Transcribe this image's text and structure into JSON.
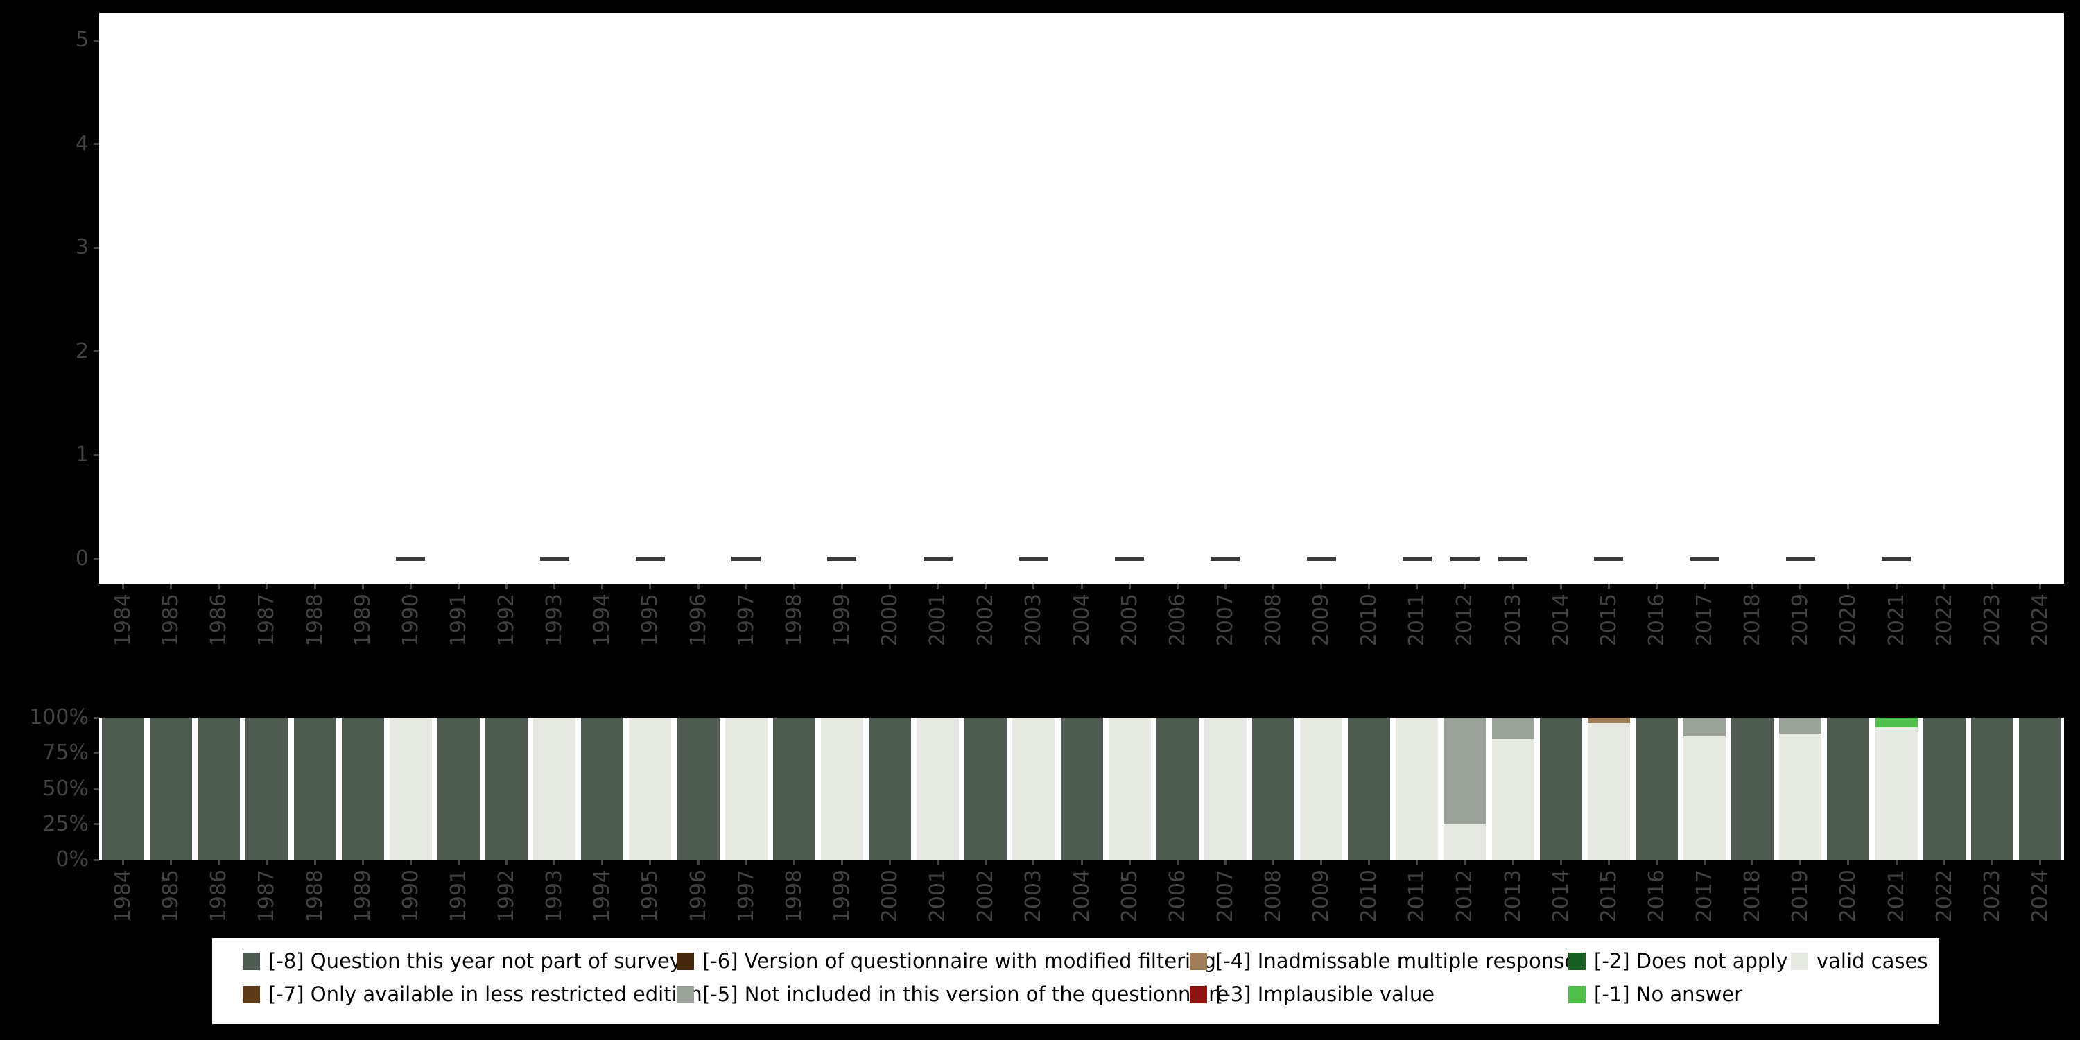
{
  "colors": {
    "background": "#000000",
    "plot_background": "#ffffff",
    "axis_text": "#424242",
    "point_dash": "#3a3a3a",
    "legend_background": "#ffffff",
    "legend_text": "#000000"
  },
  "category_colors": {
    "-8": "#4f5a50",
    "-7": "#5d3a18",
    "-6": "#46280c",
    "-5": "#9ba29a",
    "-4": "#a07e58",
    "-3": "#8e1410",
    "-2": "#185e20",
    "-1": "#4fbf4a",
    "valid": "#e7eae2"
  },
  "chart_data": [
    {
      "type": "scatter",
      "marker": "dash",
      "title": "",
      "xlabel": "",
      "ylabel": "",
      "ylim": [
        0,
        5
      ],
      "yticks": [
        "0",
        "1",
        "2",
        "3",
        "4",
        "5"
      ],
      "grid": false,
      "points": [
        {
          "year": "1990",
          "value": 0
        },
        {
          "year": "1993",
          "value": 0
        },
        {
          "year": "1995",
          "value": 0
        },
        {
          "year": "1997",
          "value": 0
        },
        {
          "year": "1999",
          "value": 0
        },
        {
          "year": "2001",
          "value": 0
        },
        {
          "year": "2003",
          "value": 0
        },
        {
          "year": "2005",
          "value": 0
        },
        {
          "year": "2007",
          "value": 0
        },
        {
          "year": "2009",
          "value": 0
        },
        {
          "year": "2011",
          "value": 0
        },
        {
          "year": "2012",
          "value": 0
        },
        {
          "year": "2013",
          "value": 0
        },
        {
          "year": "2015",
          "value": 0
        },
        {
          "year": "2017",
          "value": 0
        },
        {
          "year": "2019",
          "value": 0
        },
        {
          "year": "2021",
          "value": 0
        }
      ]
    },
    {
      "type": "bar",
      "stacked_percent": true,
      "title": "",
      "xlabel": "",
      "ylabel": "",
      "yticks": [
        "0%",
        "25%",
        "50%",
        "75%",
        "100%"
      ],
      "categories": [
        "1984",
        "1985",
        "1986",
        "1987",
        "1988",
        "1989",
        "1990",
        "1991",
        "1992",
        "1993",
        "1994",
        "1995",
        "1996",
        "1997",
        "1998",
        "1999",
        "2000",
        "2001",
        "2002",
        "2003",
        "2004",
        "2005",
        "2006",
        "2007",
        "2008",
        "2009",
        "2010",
        "2011",
        "2012",
        "2013",
        "2014",
        "2015",
        "2016",
        "2017",
        "2018",
        "2019",
        "2020",
        "2021",
        "2022",
        "2023",
        "2024"
      ],
      "bars": [
        {
          "year": "1984",
          "segments": [
            {
              "code": "-8",
              "pct": 100
            }
          ]
        },
        {
          "year": "1985",
          "segments": [
            {
              "code": "-8",
              "pct": 100
            }
          ]
        },
        {
          "year": "1986",
          "segments": [
            {
              "code": "-8",
              "pct": 100
            }
          ]
        },
        {
          "year": "1987",
          "segments": [
            {
              "code": "-8",
              "pct": 100
            }
          ]
        },
        {
          "year": "1988",
          "segments": [
            {
              "code": "-8",
              "pct": 100
            }
          ]
        },
        {
          "year": "1989",
          "segments": [
            {
              "code": "-8",
              "pct": 100
            }
          ]
        },
        {
          "year": "1990",
          "segments": [
            {
              "code": "valid",
              "pct": 100
            }
          ]
        },
        {
          "year": "1991",
          "segments": [
            {
              "code": "-8",
              "pct": 100
            }
          ]
        },
        {
          "year": "1992",
          "segments": [
            {
              "code": "-8",
              "pct": 100
            }
          ]
        },
        {
          "year": "1993",
          "segments": [
            {
              "code": "valid",
              "pct": 100
            }
          ]
        },
        {
          "year": "1994",
          "segments": [
            {
              "code": "-8",
              "pct": 100
            }
          ]
        },
        {
          "year": "1995",
          "segments": [
            {
              "code": "valid",
              "pct": 100
            }
          ]
        },
        {
          "year": "1996",
          "segments": [
            {
              "code": "-8",
              "pct": 100
            }
          ]
        },
        {
          "year": "1997",
          "segments": [
            {
              "code": "valid",
              "pct": 100
            }
          ]
        },
        {
          "year": "1998",
          "segments": [
            {
              "code": "-8",
              "pct": 100
            }
          ]
        },
        {
          "year": "1999",
          "segments": [
            {
              "code": "valid",
              "pct": 100
            }
          ]
        },
        {
          "year": "2000",
          "segments": [
            {
              "code": "-8",
              "pct": 100
            }
          ]
        },
        {
          "year": "2001",
          "segments": [
            {
              "code": "valid",
              "pct": 100
            }
          ]
        },
        {
          "year": "2002",
          "segments": [
            {
              "code": "-8",
              "pct": 100
            }
          ]
        },
        {
          "year": "2003",
          "segments": [
            {
              "code": "valid",
              "pct": 100
            }
          ]
        },
        {
          "year": "2004",
          "segments": [
            {
              "code": "-8",
              "pct": 100
            }
          ]
        },
        {
          "year": "2005",
          "segments": [
            {
              "code": "valid",
              "pct": 100
            }
          ]
        },
        {
          "year": "2006",
          "segments": [
            {
              "code": "-8",
              "pct": 100
            }
          ]
        },
        {
          "year": "2007",
          "segments": [
            {
              "code": "valid",
              "pct": 100
            }
          ]
        },
        {
          "year": "2008",
          "segments": [
            {
              "code": "-8",
              "pct": 100
            }
          ]
        },
        {
          "year": "2009",
          "segments": [
            {
              "code": "valid",
              "pct": 100
            }
          ]
        },
        {
          "year": "2010",
          "segments": [
            {
              "code": "-8",
              "pct": 100
            }
          ]
        },
        {
          "year": "2011",
          "segments": [
            {
              "code": "valid",
              "pct": 100
            }
          ]
        },
        {
          "year": "2012",
          "segments": [
            {
              "code": "valid",
              "pct": 25
            },
            {
              "code": "-5",
              "pct": 75
            }
          ]
        },
        {
          "year": "2013",
          "segments": [
            {
              "code": "valid",
              "pct": 85
            },
            {
              "code": "-5",
              "pct": 15
            }
          ]
        },
        {
          "year": "2014",
          "segments": [
            {
              "code": "-8",
              "pct": 100
            }
          ]
        },
        {
          "year": "2015",
          "segments": [
            {
              "code": "valid",
              "pct": 96
            },
            {
              "code": "-4",
              "pct": 4
            }
          ]
        },
        {
          "year": "2016",
          "segments": [
            {
              "code": "-8",
              "pct": 100
            }
          ]
        },
        {
          "year": "2017",
          "segments": [
            {
              "code": "valid",
              "pct": 87
            },
            {
              "code": "-5",
              "pct": 13
            }
          ]
        },
        {
          "year": "2018",
          "segments": [
            {
              "code": "-8",
              "pct": 100
            }
          ]
        },
        {
          "year": "2019",
          "segments": [
            {
              "code": "valid",
              "pct": 89
            },
            {
              "code": "-5",
              "pct": 11
            }
          ]
        },
        {
          "year": "2020",
          "segments": [
            {
              "code": "-8",
              "pct": 100
            }
          ]
        },
        {
          "year": "2021",
          "segments": [
            {
              "code": "valid",
              "pct": 93
            },
            {
              "code": "-1",
              "pct": 7
            }
          ]
        },
        {
          "year": "2022",
          "segments": [
            {
              "code": "-8",
              "pct": 100
            }
          ]
        },
        {
          "year": "2023",
          "segments": [
            {
              "code": "-8",
              "pct": 100
            }
          ]
        },
        {
          "year": "2024",
          "segments": [
            {
              "code": "-8",
              "pct": 100
            }
          ]
        }
      ]
    }
  ],
  "legend": {
    "rows": [
      [
        {
          "code": "-8",
          "label": "[-8] Question this year not part of survey"
        },
        {
          "code": "-6",
          "label": "[-6] Version of questionnaire with modified filtering"
        },
        {
          "code": "-4",
          "label": "[-4] Inadmissable multiple response"
        },
        {
          "code": "-2",
          "label": "[-2] Does not apply"
        },
        {
          "code": "valid",
          "label": "valid cases"
        }
      ],
      [
        {
          "code": "-7",
          "label": "[-7] Only available in less restricted edition"
        },
        {
          "code": "-5",
          "label": "[-5] Not included in this version of the questionnaire"
        },
        {
          "code": "-3",
          "label": "[-3] Implausible value"
        },
        {
          "code": "-1",
          "label": "[-1] No answer"
        }
      ]
    ]
  }
}
